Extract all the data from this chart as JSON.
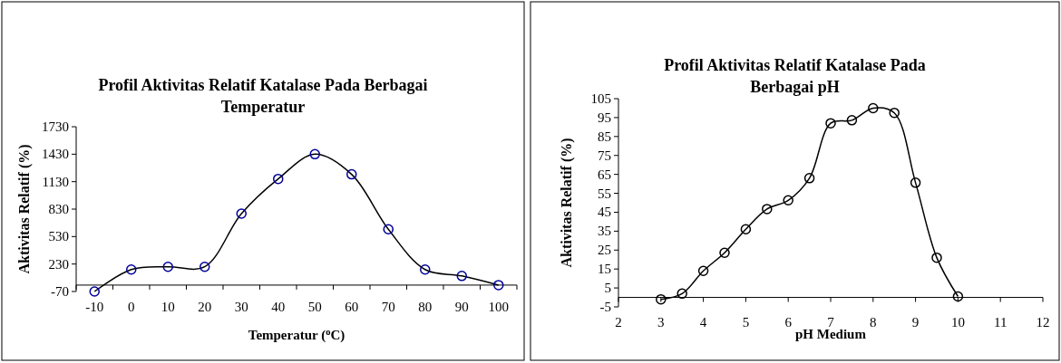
{
  "chart_data": [
    {
      "type": "line",
      "title": "Profil Aktivitas Relatif Katalase Pada Berbagai Temperatur",
      "xlabel": "Temperatur ($^{o}$C)",
      "ylabel": "Aktivitas Relatif (%)",
      "categories": [
        "-10",
        "0",
        "10",
        "20",
        "30",
        "40",
        "50",
        "60",
        "70",
        "80",
        "90",
        "100"
      ],
      "ylim": [
        -70,
        1730
      ],
      "yticks": [
        -70,
        230,
        530,
        830,
        1130,
        1430,
        1730
      ],
      "grid": false,
      "series": [
        {
          "color": "#000000",
          "marker": "none",
          "values": [
            -70,
            170,
            200,
            200,
            780,
            1160,
            1430,
            1210,
            610,
            170,
            100,
            0
          ]
        },
        {
          "type": "scatter",
          "color": "#000099",
          "marker": "circle",
          "values": [
            -70,
            170,
            200,
            200,
            780,
            1160,
            1430,
            1210,
            610,
            170,
            100,
            0
          ]
        }
      ]
    },
    {
      "type": "line",
      "title": "Profil Aktivitas Relatif Katalase Pada Berbagai pH",
      "xlabel": "pH Medium",
      "ylabel": "Aktivitas Relatif (%)",
      "xlim": [
        2,
        12
      ],
      "xticks": [
        2,
        3,
        4,
        5,
        6,
        7,
        8,
        9,
        10,
        11,
        12
      ],
      "ylim": [
        -5,
        105
      ],
      "yticks": [
        -5,
        5,
        15,
        25,
        35,
        45,
        55,
        65,
        75,
        85,
        95,
        105
      ],
      "grid": false,
      "marker": "circle",
      "series": [
        {
          "color": "#000000",
          "x": [
            3,
            3.5,
            4,
            4.5,
            5,
            5.5,
            6,
            6.5,
            7,
            7.5,
            8,
            8.5,
            9,
            9.5,
            10
          ],
          "values": [
            -1,
            2,
            14,
            23.6,
            36,
            46.7,
            51.3,
            63,
            92,
            93.6,
            100,
            97.5,
            60.6,
            21,
            0.5
          ]
        }
      ]
    }
  ]
}
